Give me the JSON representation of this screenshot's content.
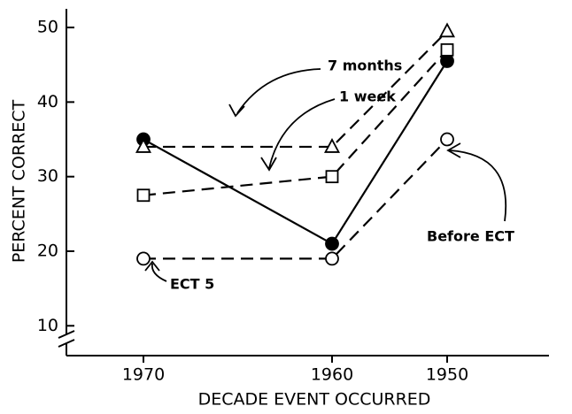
{
  "chart_data": {
    "type": "line",
    "y_label": "PERCENT CORRECT",
    "x_label": "DECADE EVENT OCCURRED",
    "categories": [
      "1970",
      "1960",
      "1950"
    ],
    "ylim": [
      6,
      52.5
    ],
    "yticks": [
      10,
      20,
      30,
      40,
      50
    ],
    "series": [
      {
        "name": "Before ECT",
        "color": "#000000",
        "marker": "filled-circle",
        "dash": false,
        "values": [
          35,
          21,
          45.5
        ]
      },
      {
        "name": "ECT 5",
        "color": "#000000",
        "marker": "open-circle",
        "dash": true,
        "values": [
          19,
          19,
          35
        ]
      },
      {
        "name": "1 week",
        "color": "#000000",
        "marker": "open-square",
        "dash": true,
        "values": [
          27.5,
          30,
          47
        ]
      },
      {
        "name": "7 months",
        "color": "#000000",
        "marker": "open-triangle",
        "dash": true,
        "values": [
          34,
          34,
          49.5
        ]
      }
    ]
  }
}
